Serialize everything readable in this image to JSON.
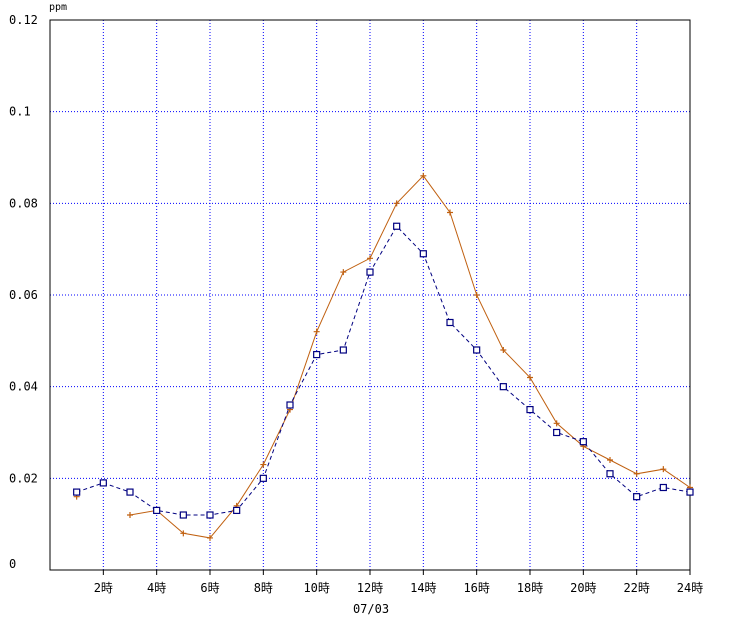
{
  "chart_data": {
    "type": "line",
    "title": "",
    "unit_label": "ppm",
    "xlabel": "07/03",
    "ylabel": "",
    "ylim": [
      0,
      0.12
    ],
    "xlim": [
      0,
      24
    ],
    "y_ticks": [
      {
        "value": 0,
        "label": "0"
      },
      {
        "value": 0.02,
        "label": "0.02"
      },
      {
        "value": 0.04,
        "label": "0.04"
      },
      {
        "value": 0.06,
        "label": "0.06"
      },
      {
        "value": 0.08,
        "label": "0.08"
      },
      {
        "value": 0.1,
        "label": "0.1"
      },
      {
        "value": 0.12,
        "label": "0.12"
      }
    ],
    "x_ticks": [
      {
        "value": 2,
        "label": "2時"
      },
      {
        "value": 4,
        "label": "4時"
      },
      {
        "value": 6,
        "label": "6時"
      },
      {
        "value": 8,
        "label": "8時"
      },
      {
        "value": 10,
        "label": "10時"
      },
      {
        "value": 12,
        "label": "12時"
      },
      {
        "value": 14,
        "label": "14時"
      },
      {
        "value": 16,
        "label": "16時"
      },
      {
        "value": 18,
        "label": "18時"
      },
      {
        "value": 20,
        "label": "20時"
      },
      {
        "value": 22,
        "label": "22時"
      },
      {
        "value": 24,
        "label": "24時"
      }
    ],
    "grid": true,
    "legend": "none",
    "series": [
      {
        "color": "#c06010",
        "marker": "plus",
        "line_style": "solid",
        "segments": [
          [
            [
              1,
              0.016
            ]
          ],
          [
            [
              3,
              0.012
            ],
            [
              4,
              0.013
            ],
            [
              5,
              0.008
            ],
            [
              6,
              0.007
            ],
            [
              7,
              0.014
            ],
            [
              8,
              0.023
            ],
            [
              9,
              0.035
            ],
            [
              10,
              0.052
            ],
            [
              11,
              0.065
            ],
            [
              12,
              0.068
            ],
            [
              13,
              0.08
            ],
            [
              14,
              0.086
            ],
            [
              15,
              0.078
            ],
            [
              16,
              0.06
            ],
            [
              17,
              0.048
            ],
            [
              18,
              0.042
            ],
            [
              19,
              0.032
            ],
            [
              20,
              0.027
            ],
            [
              21,
              0.024
            ],
            [
              22,
              0.021
            ],
            [
              23,
              0.022
            ],
            [
              24,
              0.018
            ]
          ]
        ]
      },
      {
        "color": "#000080",
        "marker": "square",
        "line_style": "dashed",
        "segments": [
          [
            [
              1,
              0.017
            ],
            [
              2,
              0.019
            ],
            [
              3,
              0.017
            ],
            [
              4,
              0.013
            ],
            [
              5,
              0.012
            ],
            [
              6,
              0.012
            ],
            [
              7,
              0.013
            ],
            [
              8,
              0.02
            ],
            [
              9,
              0.036
            ],
            [
              10,
              0.047
            ],
            [
              11,
              0.048
            ],
            [
              12,
              0.065
            ],
            [
              13,
              0.075
            ],
            [
              14,
              0.069
            ],
            [
              15,
              0.054
            ],
            [
              16,
              0.048
            ],
            [
              17,
              0.04
            ],
            [
              18,
              0.035
            ],
            [
              19,
              0.03
            ],
            [
              20,
              0.028
            ],
            [
              21,
              0.021
            ],
            [
              22,
              0.016
            ],
            [
              23,
              0.018
            ],
            [
              24,
              0.017
            ]
          ]
        ]
      }
    ],
    "colors": {
      "grid": "#0000ff",
      "axis": "#000000",
      "background": "#ffffff"
    }
  }
}
